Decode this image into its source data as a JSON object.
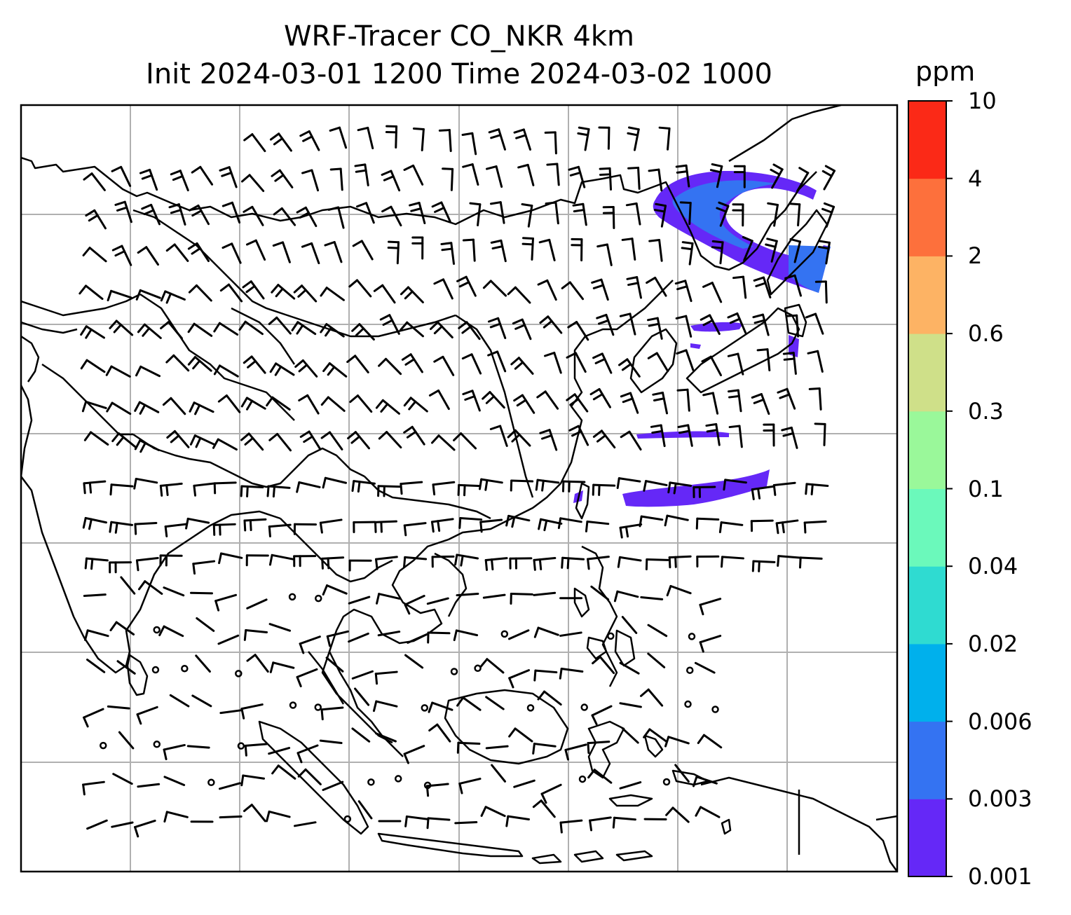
{
  "title": {
    "line1": "WRF-Tracer CO_NKR 4km",
    "line2": "Init 2024-03-01 1200 Time 2024-03-02 1000"
  },
  "colorbar": {
    "unit": "ppm",
    "levels": [
      "0.001",
      "0.003",
      "0.006",
      "0.02",
      "0.04",
      "0.1",
      "0.3",
      "0.6",
      "2",
      "4",
      "10"
    ],
    "colors": [
      "#6528f7",
      "#3473f2",
      "#00b0ec",
      "#2fdbd1",
      "#6bf9bb",
      "#9af89a",
      "#cfe089",
      "#fdb364",
      "#fd703c",
      "#fb2917"
    ]
  },
  "map": {
    "gridlines": true,
    "tracer_plumes": [
      "plume-north-hokkaido",
      "plume-east-japan",
      "plume-pacific-band",
      "plume-taiwan-east"
    ],
    "wind_field": "wind-barbs"
  }
}
